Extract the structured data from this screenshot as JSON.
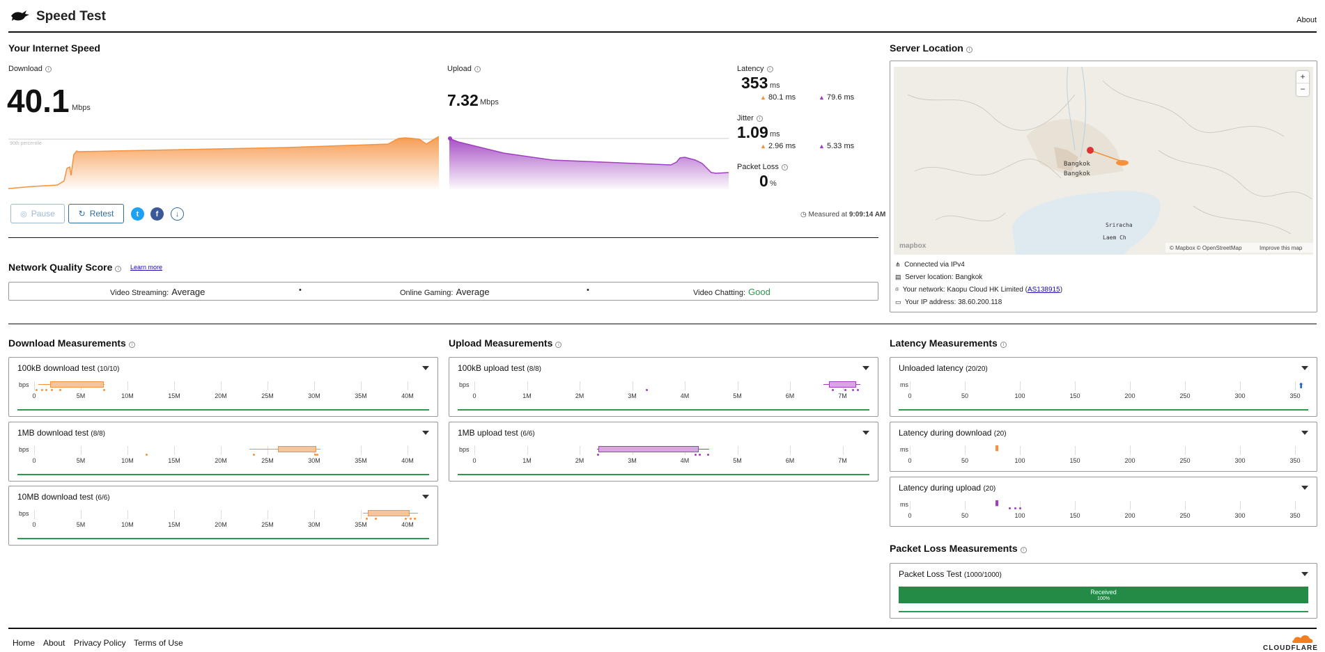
{
  "header": {
    "title": "Speed Test",
    "about": "About"
  },
  "speed": {
    "heading": "Your Internet Speed",
    "download_label": "Download",
    "download_value": "40.1",
    "download_unit": "Mbps",
    "percentile_label": "90th percentile",
    "upload_label": "Upload",
    "upload_value": "7.32",
    "upload_unit": "Mbps",
    "latency_label": "Latency",
    "latency_value": "353",
    "latency_unit": "ms",
    "latency_down": "80.1 ms",
    "latency_up": "79.6 ms",
    "jitter_label": "Jitter",
    "jitter_value": "1.09",
    "jitter_unit": "ms",
    "jitter_down": "2.96 ms",
    "jitter_up": "5.33 ms",
    "packet_loss_label": "Packet Loss",
    "packet_loss_value": "0",
    "packet_loss_unit": "%",
    "pause_label": "Pause",
    "retest_label": "Retest",
    "measured_prefix": "Measured at",
    "measured_time": "9:09:14 AM"
  },
  "nqs": {
    "heading": "Network Quality Score",
    "learn_more": "Learn more",
    "items": [
      {
        "label": "Video Streaming:",
        "value": "Average"
      },
      {
        "label": "Online Gaming:",
        "value": "Average"
      },
      {
        "label": "Video Chatting:",
        "value": "Good"
      }
    ]
  },
  "server": {
    "heading": "Server Location",
    "map_labels": {
      "city1": "Bangkok",
      "city2": "Bangkok",
      "city3": "Sriracha",
      "city4": "Laem Ch",
      "mapbox": "mapbox",
      "attribution": "© Mapbox © OpenStreetMap",
      "improve": "Improve this map",
      "zoom_in": "+",
      "zoom_out": "−"
    },
    "connected": "Connected via IPv4",
    "location": "Server location: Bangkok",
    "network_prefix": "Your network: Kaopu Cloud HK Limited (",
    "network_as": "AS138915",
    "network_suffix": ")",
    "ip": "Your IP address: 38.60.200.118"
  },
  "download_meas": {
    "heading": "Download Measurements",
    "unit": "bps",
    "ticks": [
      "0",
      "5M",
      "10M",
      "15M",
      "20M",
      "25M",
      "30M",
      "35M",
      "40M"
    ],
    "tests": [
      {
        "title": "100kB download test",
        "count": "(10/10)"
      },
      {
        "title": "1MB download test",
        "count": "(8/8)"
      },
      {
        "title": "10MB download test",
        "count": "(6/6)"
      }
    ]
  },
  "upload_meas": {
    "heading": "Upload Measurements",
    "unit": "bps",
    "ticks": [
      "0",
      "1M",
      "2M",
      "3M",
      "4M",
      "5M",
      "6M",
      "7M"
    ],
    "tests": [
      {
        "title": "100kB upload test",
        "count": "(8/8)"
      },
      {
        "title": "1MB upload test",
        "count": "(6/6)"
      }
    ]
  },
  "latency_meas": {
    "heading": "Latency Measurements",
    "unit": "ms",
    "ticks": [
      "0",
      "50",
      "100",
      "150",
      "200",
      "250",
      "300",
      "350"
    ],
    "tests": [
      {
        "title": "Unloaded latency",
        "count": "(20/20)"
      },
      {
        "title": "Latency during download",
        "count": "(20)"
      },
      {
        "title": "Latency during upload",
        "count": "(20)"
      }
    ]
  },
  "packet_meas": {
    "heading": "Packet Loss Measurements",
    "test_title": "Packet Loss Test",
    "test_count": "(1000/1000)",
    "received_label": "Received",
    "received_pct": "100%"
  },
  "footer": {
    "home": "Home",
    "about": "About",
    "privacy": "Privacy Policy",
    "terms": "Terms of Use",
    "brand": "CLOUDFLARE"
  },
  "colors": {
    "download": "#f6913e",
    "upload": "#9f3fbf",
    "good": "#2c9a4c",
    "link": "#2e6da4"
  }
}
